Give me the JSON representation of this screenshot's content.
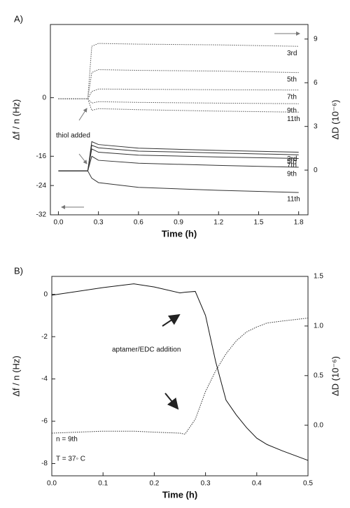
{
  "chart_data": [
    {
      "type": "line",
      "panel": "A)",
      "xlabel": "Time (h)",
      "ylabel": "Δf / n (Hz)",
      "y2label": "ΔD (10⁻⁶)",
      "annotations": [
        "thiol added"
      ],
      "xlim": [
        -0.06,
        1.87
      ],
      "xticks": [
        {
          "value": 0,
          "label": "0.0"
        },
        0.3,
        0.6,
        0.9,
        1.2,
        1.5,
        1.8
      ],
      "ylim": [
        -32,
        20
      ],
      "yticks": [
        -32,
        -24,
        -16,
        0
      ],
      "y2lim": [
        -3.07,
        10.0
      ],
      "y2ticks": [
        0,
        3,
        6,
        9
      ],
      "x": [
        0,
        0.22,
        0.25,
        0.3,
        0.6,
        1.2,
        1.8
      ],
      "series": [
        {
          "name": "3rd",
          "color": "#333333",
          "dash": false,
          "values": [
            -20,
            -20,
            -12,
            -12.8,
            -13.8,
            -14.4,
            -14.9
          ]
        },
        {
          "name": "5th",
          "color": "#333333",
          "dash": false,
          "values": [
            -20,
            -20,
            -13,
            -13.7,
            -14.6,
            -15.1,
            -15.6
          ]
        },
        {
          "name": "7th",
          "color": "#333333",
          "dash": false,
          "values": [
            -20,
            -20,
            -14,
            -14.9,
            -15.7,
            -16.2,
            -16.6
          ]
        },
        {
          "name": "9th",
          "color": "#333333",
          "dash": false,
          "values": [
            -20,
            -20,
            -16,
            -17.1,
            -17.9,
            -18.5,
            -19
          ]
        },
        {
          "name": "11th",
          "color": "#333333",
          "dash": false,
          "values": [
            -20,
            -20,
            -22,
            -23.2,
            -24.5,
            -25.3,
            -25.9
          ]
        },
        {
          "name": "3rd",
          "color": "#555555",
          "dash": true,
          "axis": "y2",
          "values": [
            4.9,
            4.9,
            8.5,
            8.7,
            8.65,
            8.6,
            8.5
          ]
        },
        {
          "name": "5th",
          "color": "#555555",
          "dash": true,
          "axis": "y2",
          "values": [
            4.9,
            4.9,
            6.7,
            6.9,
            6.85,
            6.8,
            6.7
          ]
        },
        {
          "name": "7th",
          "color": "#555555",
          "dash": true,
          "axis": "y2",
          "values": [
            4.9,
            4.9,
            5.4,
            5.57,
            5.55,
            5.52,
            5.5
          ]
        },
        {
          "name": "9th",
          "color": "#555555",
          "dash": true,
          "axis": "y2",
          "values": [
            4.9,
            4.9,
            4.6,
            4.7,
            4.65,
            4.6,
            4.56
          ]
        },
        {
          "name": "11th",
          "color": "#555555",
          "dash": true,
          "axis": "y2",
          "values": [
            4.9,
            4.9,
            4.1,
            4.22,
            4.15,
            4.05,
            3.98
          ]
        }
      ]
    },
    {
      "type": "line",
      "panel": "B)",
      "xlabel": "Time (h)",
      "ylabel": "Δf / n (Hz)",
      "y2label": "ΔD (10⁻⁶)",
      "annotations": [
        "aptamer/EDC addition",
        "n = 9th",
        "T = 37◦ C"
      ],
      "xlim": [
        0,
        0.5
      ],
      "xticks": [
        {
          "value": 0,
          "label": "0.0"
        },
        0.1,
        0.2,
        0.3,
        0.4,
        0.5
      ],
      "ylim": [
        -8.58,
        0.85
      ],
      "yticks": [
        -8,
        -6,
        -4,
        -2,
        0
      ],
      "y2lim": [
        -0.51,
        1.5
      ],
      "y2ticks": [
        {
          "value": 0,
          "label": "0.0"
        },
        0.5,
        {
          "value": 1,
          "label": "1.0"
        },
        1.5
      ],
      "x": [
        0,
        0.1,
        0.16,
        0.2,
        0.25,
        0.26,
        0.28,
        0.3,
        0.32,
        0.34,
        0.36,
        0.38,
        0.4,
        0.42,
        0.45,
        0.5
      ],
      "series": [
        {
          "color": "#111111",
          "dash": false,
          "values": [
            -0.04,
            0.32,
            0.5,
            0.35,
            0.07,
            0.1,
            0.14,
            -1,
            -3.2,
            -5,
            -5.7,
            -6.3,
            -6.8,
            -7.1,
            -7.4,
            -7.85
          ]
        },
        {
          "color": "#333333",
          "dash": true,
          "axis": "y2",
          "values": [
            -0.08,
            -0.06,
            -0.06,
            -0.07,
            -0.08,
            -0.09,
            0.06,
            0.34,
            0.55,
            0.72,
            0.85,
            0.94,
            0.99,
            1.03,
            1.05,
            1.08
          ]
        }
      ]
    }
  ]
}
